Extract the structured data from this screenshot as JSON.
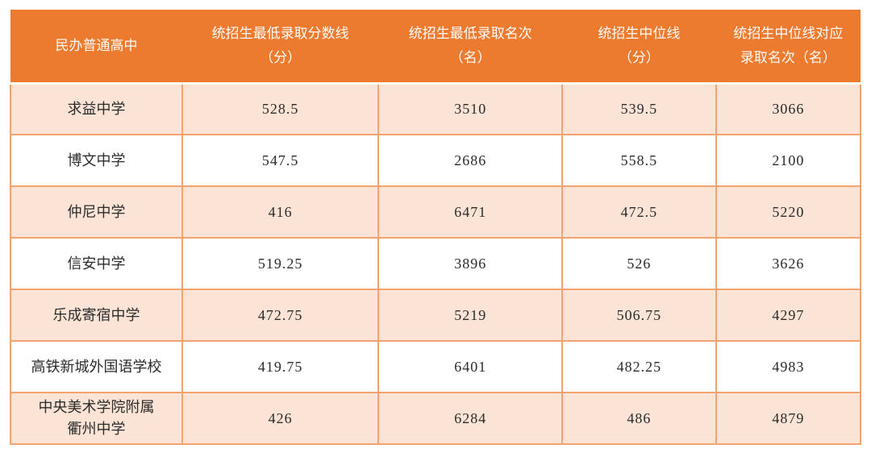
{
  "colors": {
    "header_bg": "#EC7B30",
    "header_text": "#FEFCFB",
    "row_alt_bg": "#FBE3D5",
    "row_bg": "#FFFFFF",
    "border_color": "#F2A470",
    "body_text": "#2B2B2B"
  },
  "table": {
    "columns": [
      {
        "label": "民办普通高中"
      },
      {
        "label": "统招生最低录取分数线\n（分）"
      },
      {
        "label": "统招生最低录取名次\n（名）"
      },
      {
        "label": "统招生中位线\n（分）"
      },
      {
        "label": "统招生中位线对应\n录取名次（名）"
      }
    ],
    "rows": [
      {
        "school": "求益中学",
        "min_score": "528.5",
        "min_rank": "3510",
        "median_score": "539.5",
        "median_rank": "3066"
      },
      {
        "school": "博文中学",
        "min_score": "547.5",
        "min_rank": "2686",
        "median_score": "558.5",
        "median_rank": "2100"
      },
      {
        "school": "仲尼中学",
        "min_score": "416",
        "min_rank": "6471",
        "median_score": "472.5",
        "median_rank": "5220"
      },
      {
        "school": "信安中学",
        "min_score": "519.25",
        "min_rank": "3896",
        "median_score": "526",
        "median_rank": "3626"
      },
      {
        "school": "乐成寄宿中学",
        "min_score": "472.75",
        "min_rank": "5219",
        "median_score": "506.75",
        "median_rank": "4297"
      },
      {
        "school": "高铁新城外国语学校",
        "min_score": "419.75",
        "min_rank": "6401",
        "median_score": "482.25",
        "median_rank": "4983"
      },
      {
        "school": "中央美术学院附属\n衢州中学",
        "min_score": "426",
        "min_rank": "6284",
        "median_score": "486",
        "median_rank": "4879"
      }
    ]
  }
}
